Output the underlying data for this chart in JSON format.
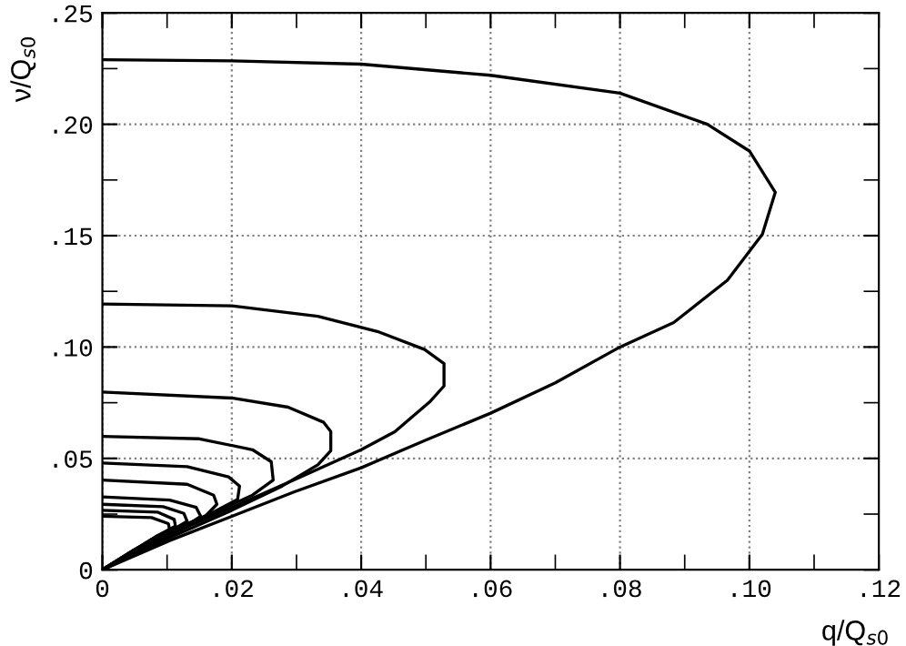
{
  "chart_data": {
    "type": "line",
    "xlabel": "q/Q$_{s0}$",
    "ylabel": "ν/Q$_{s0}$",
    "xlim": [
      0,
      0.12
    ],
    "ylim": [
      0,
      0.25
    ],
    "xticks": [
      {
        "value": 0,
        "label": "0"
      },
      {
        "value": 0.01,
        "label": null
      },
      {
        "value": 0.02,
        "label": ".02"
      },
      {
        "value": 0.03,
        "label": null
      },
      {
        "value": 0.04,
        "label": ".04"
      },
      {
        "value": 0.05,
        "label": null
      },
      {
        "value": 0.06,
        "label": ".06"
      },
      {
        "value": 0.07,
        "label": null
      },
      {
        "value": 0.08,
        "label": ".08"
      },
      {
        "value": 0.09,
        "label": null
      },
      {
        "value": 0.1,
        "label": ".10"
      },
      {
        "value": 0.11,
        "label": null
      },
      {
        "value": 0.12,
        "label": ".12"
      }
    ],
    "yticks": [
      {
        "value": 0,
        "label": "0"
      },
      {
        "value": 0.025,
        "label": null
      },
      {
        "value": 0.05,
        "label": ".05"
      },
      {
        "value": 0.075,
        "label": null
      },
      {
        "value": 0.1,
        "label": ".10"
      },
      {
        "value": 0.125,
        "label": null
      },
      {
        "value": 0.15,
        "label": ".15"
      },
      {
        "value": 0.175,
        "label": null
      },
      {
        "value": 0.2,
        "label": ".20"
      },
      {
        "value": 0.225,
        "label": null
      },
      {
        "value": 0.25,
        "label": ".25"
      }
    ],
    "grid": true,
    "line_style": "solid",
    "marker": "none",
    "series": [
      {
        "color": "#000000",
        "x": [
          0,
          0.02,
          0.04,
          0.06,
          0.08,
          0.0935,
          0.1,
          0.104,
          0.102,
          0.0966,
          0.0883,
          0.08,
          0.07,
          0.06,
          0.0498,
          0.04,
          0.0296,
          0.02,
          0.0104,
          0
        ],
        "values": [
          0.229,
          0.2285,
          0.227,
          0.222,
          0.214,
          0.2,
          0.188,
          0.1695,
          0.1506,
          0.13,
          0.111,
          0.1,
          0.0839,
          0.0703,
          0.058,
          0.0458,
          0.0349,
          0.024,
          0.0131,
          0
        ]
      },
      {
        "color": "#000000",
        "x": [
          0,
          0.02,
          0.0333,
          0.0425,
          0.0498,
          0.0528,
          0.0528,
          0.0507,
          0.0452,
          0.04,
          0.0296,
          0.02,
          0.0104,
          0
        ],
        "values": [
          0.1193,
          0.1185,
          0.1138,
          0.107,
          0.0989,
          0.0926,
          0.0825,
          0.0757,
          0.062,
          0.0539,
          0.0403,
          0.028,
          0.0158,
          0
        ]
      },
      {
        "color": "#000000",
        "x": [
          0,
          0.02,
          0.0287,
          0.0342,
          0.0353,
          0.0353,
          0.0333,
          0.0278,
          0.02,
          0.0104,
          0
        ],
        "values": [
          0.0798,
          0.0771,
          0.073,
          0.0662,
          0.0621,
          0.0534,
          0.0471,
          0.0376,
          0.0267,
          0.0144,
          0
        ]
      },
      {
        "color": "#000000",
        "x": [
          0,
          0.015,
          0.0232,
          0.0261,
          0.0264,
          0.0232,
          0.015,
          0.0058,
          0
        ],
        "values": [
          0.0599,
          0.0588,
          0.0539,
          0.0485,
          0.0403,
          0.0335,
          0.0226,
          0.0103,
          0
        ]
      },
      {
        "color": "#000000",
        "x": [
          0,
          0.0131,
          0.0195,
          0.0212,
          0.0209,
          0.0168,
          0.0104,
          0
        ],
        "values": [
          0.0479,
          0.0463,
          0.0417,
          0.0376,
          0.0316,
          0.0253,
          0.0172,
          0
        ]
      },
      {
        "color": "#000000",
        "x": [
          0,
          0.0131,
          0.0172,
          0.0177,
          0.0159,
          0.0104,
          0
        ],
        "values": [
          0.0403,
          0.0384,
          0.0335,
          0.0294,
          0.024,
          0.0152,
          0
        ]
      },
      {
        "color": "#000000",
        "x": [
          0,
          0.0104,
          0.0145,
          0.0152,
          0.0131,
          0.0076,
          0
        ],
        "values": [
          0.0327,
          0.0313,
          0.028,
          0.024,
          0.0199,
          0.0117,
          0
        ]
      },
      {
        "color": "#000000",
        "x": [
          0,
          0.0094,
          0.0126,
          0.0131,
          0.0104,
          0.0049,
          0
        ],
        "values": [
          0.0294,
          0.0283,
          0.0253,
          0.0218,
          0.0172,
          0.009,
          0
        ]
      },
      {
        "color": "#000000",
        "x": [
          0,
          0.0085,
          0.0111,
          0.0113,
          0.0085,
          0
        ],
        "values": [
          0.0267,
          0.0259,
          0.0226,
          0.0196,
          0.0153,
          0
        ]
      },
      {
        "color": "#000000",
        "x": [
          0,
          0.0076,
          0.0102,
          0.0104,
          0.0076,
          0
        ],
        "values": [
          0.024,
          0.0234,
          0.0207,
          0.018,
          0.0136,
          0
        ]
      }
    ]
  }
}
